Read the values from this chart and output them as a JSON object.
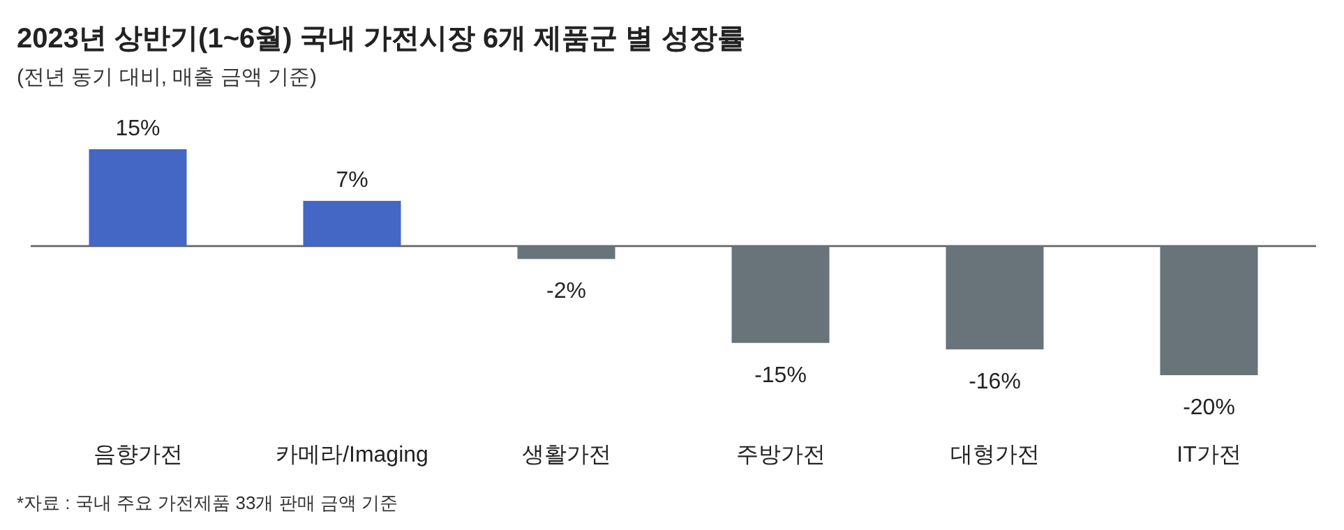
{
  "chart_data": {
    "type": "bar",
    "title": "2023년 상반기(1~6월) 국내 가전시장 6개 제품군 별 성장률",
    "subtitle": "(전년 동기 대비, 매출 금액 기준)",
    "categories": [
      "음향가전",
      "카메라/Imaging",
      "생활가전",
      "주방가전",
      "대형가전",
      "IT가전"
    ],
    "values": [
      15,
      7,
      -2,
      -15,
      -16,
      -20
    ],
    "colors": [
      "#4466c4",
      "#4466c4",
      "#68737a",
      "#68737a",
      "#68737a",
      "#68737a"
    ],
    "value_labels": [
      "15%",
      "7%",
      "-2%",
      "-15%",
      "-16%",
      "-20%"
    ],
    "annotations": [
      "*자료 : 국내 주요 가전제품 33개 판매 금액 기준"
    ]
  }
}
